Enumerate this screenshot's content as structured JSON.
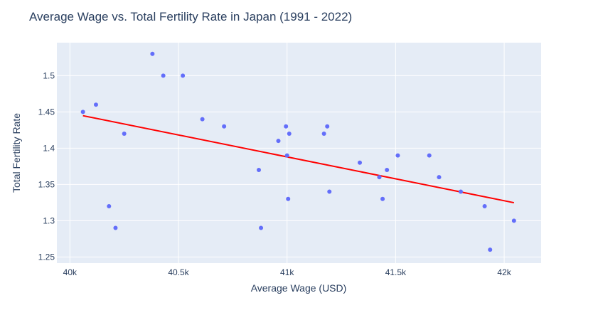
{
  "chart_data": {
    "type": "scatter",
    "title": "Average Wage vs. Total Fertility Rate in Japan (1991 - 2022)",
    "xlabel": "Average Wage (USD)",
    "ylabel": "Total Fertility Rate",
    "xlim": [
      39940,
      42170
    ],
    "ylim": [
      1.2415,
      1.5455
    ],
    "grid": true,
    "x_ticks": [
      {
        "value": 40000,
        "label": "40k"
      },
      {
        "value": 40500,
        "label": "40.5k"
      },
      {
        "value": 41000,
        "label": "41k"
      },
      {
        "value": 41500,
        "label": "41.5k"
      },
      {
        "value": 42000,
        "label": "42k"
      }
    ],
    "y_ticks": [
      {
        "value": 1.25,
        "label": "1.25"
      },
      {
        "value": 1.3,
        "label": "1.3"
      },
      {
        "value": 1.35,
        "label": "1.35"
      },
      {
        "value": 1.4,
        "label": "1.4"
      },
      {
        "value": 1.45,
        "label": "1.45"
      },
      {
        "value": 1.5,
        "label": "1.5"
      }
    ],
    "series": [
      {
        "marker_color": "#636efa",
        "points": [
          {
            "x": 40060,
            "y": 1.45
          },
          {
            "x": 40120,
            "y": 1.46
          },
          {
            "x": 40180,
            "y": 1.32
          },
          {
            "x": 40210,
            "y": 1.29
          },
          {
            "x": 40250,
            "y": 1.42
          },
          {
            "x": 40380,
            "y": 1.53
          },
          {
            "x": 40430,
            "y": 1.5
          },
          {
            "x": 40520,
            "y": 1.5
          },
          {
            "x": 40610,
            "y": 1.44
          },
          {
            "x": 40710,
            "y": 1.43
          },
          {
            "x": 40870,
            "y": 1.37
          },
          {
            "x": 40880,
            "y": 1.29
          },
          {
            "x": 40960,
            "y": 1.41
          },
          {
            "x": 40995,
            "y": 1.43
          },
          {
            "x": 41000,
            "y": 1.39
          },
          {
            "x": 41005,
            "y": 1.33
          },
          {
            "x": 41010,
            "y": 1.42
          },
          {
            "x": 41170,
            "y": 1.42
          },
          {
            "x": 41185,
            "y": 1.43
          },
          {
            "x": 41195,
            "y": 1.34
          },
          {
            "x": 41335,
            "y": 1.38
          },
          {
            "x": 41425,
            "y": 1.36
          },
          {
            "x": 41440,
            "y": 1.33
          },
          {
            "x": 41460,
            "y": 1.37
          },
          {
            "x": 41510,
            "y": 1.39
          },
          {
            "x": 41655,
            "y": 1.39
          },
          {
            "x": 41700,
            "y": 1.36
          },
          {
            "x": 41800,
            "y": 1.34
          },
          {
            "x": 41910,
            "y": 1.32
          },
          {
            "x": 41935,
            "y": 1.26
          },
          {
            "x": 42045,
            "y": 1.3
          }
        ]
      }
    ],
    "trendline": {
      "color": "#ff0000",
      "points": [
        {
          "x": 40060,
          "y": 1.4448
        },
        {
          "x": 42045,
          "y": 1.3248
        }
      ]
    }
  }
}
